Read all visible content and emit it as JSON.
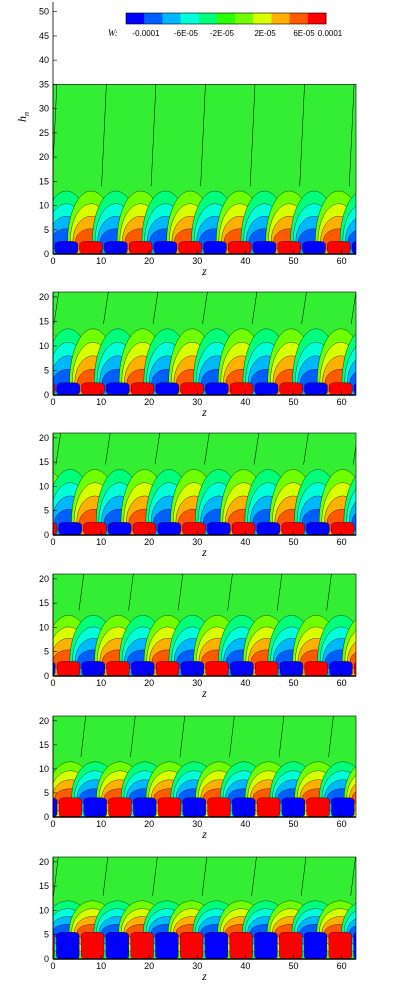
{
  "chart_data": {
    "type": "heatmap",
    "description_of_values": "contour level values for variable W",
    "colorbar": {
      "label": "W:",
      "tick_labels": [
        "-0.0001",
        "-6E-05",
        "-2E-05",
        "2E-05",
        "6E-05",
        "0.0001"
      ],
      "levels": [
        -0.0001,
        -8e-05,
        -6e-05,
        -4e-05,
        -2e-05,
        0,
        2e-05,
        4e-05,
        6e-05,
        8e-05,
        0.0001
      ],
      "colors": [
        "#0000ff",
        "#0060ff",
        "#00b8ff",
        "#00ffd8",
        "#00ff7a",
        "#28ff00",
        "#70ff00",
        "#d8ff00",
        "#ffb000",
        "#ff5a00",
        "#ff0000"
      ]
    },
    "background_color": "#33ee33",
    "panels": [
      {
        "xlabel": "z",
        "ylabel": "h",
        "ylabel_sub": "n",
        "xlim": [
          0,
          63
        ],
        "ylim": [
          0,
          52
        ],
        "x_ticks": [
          "0",
          "10",
          "20",
          "30",
          "40",
          "50",
          "60"
        ],
        "y_ticks": [
          "0",
          "5",
          "10",
          "15",
          "20",
          "25",
          "30",
          "35",
          "40",
          "45",
          "50"
        ],
        "y_tick_values": [
          0,
          5,
          10,
          15,
          20,
          25,
          30,
          35,
          40,
          45,
          50
        ],
        "data_top": 35,
        "period": 10.3,
        "phase": 0.2,
        "band_top": 2.6,
        "dome_top": 13
      },
      {
        "xlabel": "z",
        "xlim": [
          0,
          63
        ],
        "ylim": [
          0,
          21
        ],
        "x_ticks": [
          "0",
          "10",
          "20",
          "30",
          "40",
          "50",
          "60"
        ],
        "y_ticks": [
          "0",
          "5",
          "10",
          "15",
          "20"
        ],
        "y_tick_values": [
          0,
          5,
          10,
          15,
          20
        ],
        "data_top": 21,
        "period": 10.3,
        "phase": 0.6,
        "band_top": 2.5,
        "dome_top": 13.5
      },
      {
        "xlabel": "z",
        "xlim": [
          0,
          63
        ],
        "ylim": [
          0,
          21
        ],
        "x_ticks": [
          "0",
          "10",
          "20",
          "30",
          "40",
          "50",
          "60"
        ],
        "y_ticks": [
          "0",
          "5",
          "10",
          "15",
          "20"
        ],
        "y_tick_values": [
          0,
          5,
          10,
          15,
          20
        ],
        "data_top": 21,
        "period": 10.3,
        "phase": 1.0,
        "band_top": 2.6,
        "dome_top": 13.5
      },
      {
        "xlabel": "z",
        "xlim": [
          0,
          63
        ],
        "ylim": [
          0,
          21
        ],
        "x_ticks": [
          "0",
          "10",
          "20",
          "30",
          "40",
          "50",
          "60"
        ],
        "y_ticks": [
          "0",
          "5",
          "10",
          "15",
          "20"
        ],
        "y_tick_values": [
          0,
          5,
          10,
          15,
          20
        ],
        "data_top": 21,
        "period": 10.3,
        "phase": 5.8,
        "band_top": 3.0,
        "dome_top": 12.5
      },
      {
        "xlabel": "z",
        "xlim": [
          0,
          63
        ],
        "ylim": [
          0,
          21
        ],
        "x_ticks": [
          "0",
          "10",
          "20",
          "30",
          "40",
          "50",
          "60"
        ],
        "y_ticks": [
          "0",
          "5",
          "10",
          "15",
          "20"
        ],
        "y_tick_values": [
          0,
          5,
          10,
          15,
          20
        ],
        "data_top": 21,
        "period": 10.3,
        "phase": 6.2,
        "band_top": 4.0,
        "dome_top": 11.5
      },
      {
        "xlabel": "z",
        "xlim": [
          0,
          63
        ],
        "ylim": [
          0,
          21
        ],
        "x_ticks": [
          "0",
          "10",
          "20",
          "30",
          "40",
          "50",
          "60"
        ],
        "y_ticks": [
          "0",
          "5",
          "10",
          "15",
          "20"
        ],
        "y_tick_values": [
          0,
          5,
          10,
          15,
          20
        ],
        "data_top": 21,
        "period": 10.3,
        "phase": 0.5,
        "band_top": 5.5,
        "dome_top": 12.0
      }
    ]
  }
}
